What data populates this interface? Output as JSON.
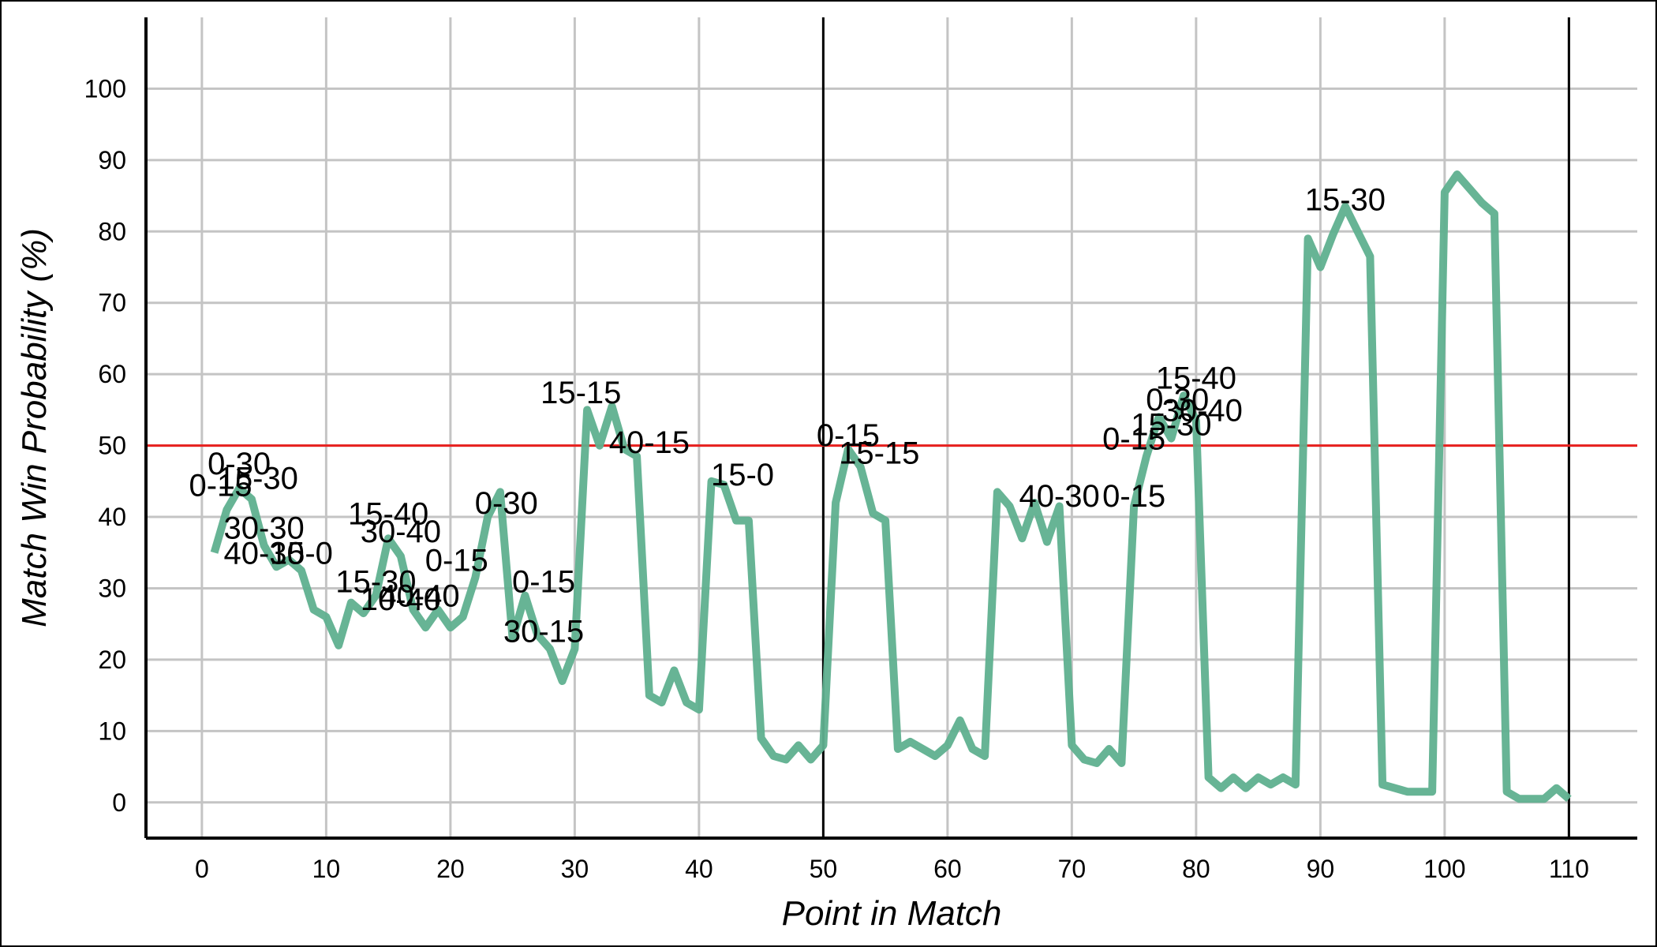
{
  "chart_data": {
    "type": "line",
    "title": "",
    "xlabel": "Point in Match",
    "ylabel": "Match Win Probability (%)",
    "xlim": [
      -4.5,
      115.5
    ],
    "ylim": [
      -5,
      110
    ],
    "xticks": [
      0,
      10,
      20,
      30,
      40,
      50,
      60,
      70,
      80,
      90,
      100,
      110
    ],
    "yticks": [
      0,
      10,
      20,
      30,
      40,
      50,
      60,
      70,
      80,
      90,
      100
    ],
    "grid": true,
    "reference_lines": {
      "horizontal": [
        {
          "y": 50,
          "color": "#e8201e"
        }
      ],
      "vertical": [
        {
          "x": 50,
          "color": "#000000"
        },
        {
          "x": 110,
          "color": "#000000"
        }
      ]
    },
    "series": [
      {
        "color": "#5fb08f",
        "x": [
          1,
          2,
          3,
          4,
          5,
          6,
          7,
          8,
          9,
          10,
          11,
          12,
          13,
          14,
          15,
          16,
          17,
          18,
          19,
          20,
          21,
          22,
          23,
          24,
          25,
          26,
          27,
          28,
          29,
          30,
          31,
          32,
          33,
          34,
          35,
          36,
          37,
          38,
          39,
          40,
          41,
          42,
          43,
          44,
          45,
          46,
          47,
          48,
          49,
          50,
          51,
          52,
          53,
          54,
          55,
          56,
          57,
          58,
          59,
          60,
          61,
          62,
          63,
          64,
          65,
          66,
          67,
          68,
          69,
          70,
          71,
          72,
          73,
          74,
          75,
          76,
          77,
          78,
          79,
          80,
          81,
          82,
          83,
          84,
          85,
          86,
          87,
          88,
          89,
          90,
          91,
          92,
          93,
          94,
          95,
          96,
          97,
          98,
          99,
          100,
          101,
          102,
          103,
          104,
          105,
          106,
          107,
          108,
          109,
          110
        ],
        "y": [
          35,
          41,
          44,
          42.5,
          36,
          33,
          34,
          32.5,
          27,
          26,
          22,
          28,
          26.5,
          29,
          37,
          34.5,
          27,
          24.5,
          27,
          24.5,
          26,
          31.5,
          40,
          43.5,
          23,
          29,
          23.5,
          21.5,
          17,
          21.5,
          55,
          50,
          55.5,
          49.5,
          48.5,
          15,
          14,
          18.5,
          14,
          13,
          45,
          44.5,
          39.5,
          39.5,
          9,
          6.5,
          6,
          8,
          6,
          8,
          42,
          49.5,
          47,
          40.5,
          39.5,
          7.5,
          8.5,
          7.5,
          6.5,
          8,
          11.5,
          7.5,
          6.5,
          43.5,
          41.5,
          37,
          42,
          36.5,
          41.5,
          8,
          6,
          5.5,
          7.5,
          5.5,
          41.5,
          48.5,
          54,
          51,
          57,
          53.5,
          3.5,
          2,
          3.5,
          2,
          3.5,
          2.5,
          3.5,
          2.5,
          79,
          75,
          79.5,
          83.5,
          80,
          76.5,
          2.5,
          2,
          1.5,
          1.5,
          1.5,
          85.5,
          88,
          86,
          84,
          82.5,
          1.5,
          0.5,
          0.5,
          0.5,
          2,
          0.5
        ]
      }
    ],
    "annotations": [
      {
        "text": "0-15",
        "x": 1.5,
        "y": 44.5
      },
      {
        "text": "0-30",
        "x": 3,
        "y": 47.5
      },
      {
        "text": "15-30",
        "x": 4.5,
        "y": 45.5
      },
      {
        "text": "30-30",
        "x": 5,
        "y": 38.5
      },
      {
        "text": "40-30",
        "x": 5,
        "y": 35
      },
      {
        "text": "15-0",
        "x": 8,
        "y": 35
      },
      {
        "text": "15-30",
        "x": 14,
        "y": 31
      },
      {
        "text": "40-40",
        "x": 17.5,
        "y": 29
      },
      {
        "text": "10-40",
        "x": 16,
        "y": 28.5
      },
      {
        "text": "15-40",
        "x": 15,
        "y": 40.5
      },
      {
        "text": "30-40",
        "x": 16,
        "y": 38
      },
      {
        "text": "0-15",
        "x": 20.5,
        "y": 34
      },
      {
        "text": "0-30",
        "x": 24.5,
        "y": 42
      },
      {
        "text": "0-15",
        "x": 27.5,
        "y": 31
      },
      {
        "text": "30-15",
        "x": 27.5,
        "y": 24
      },
      {
        "text": "15-15",
        "x": 30.5,
        "y": 57.5
      },
      {
        "text": "40-15",
        "x": 36,
        "y": 50.5
      },
      {
        "text": "15-0",
        "x": 43.5,
        "y": 46
      },
      {
        "text": "0-15",
        "x": 52,
        "y": 51.5
      },
      {
        "text": "15-15",
        "x": 54.5,
        "y": 49
      },
      {
        "text": "40-30",
        "x": 69,
        "y": 43
      },
      {
        "text": "0-15",
        "x": 75,
        "y": 43
      },
      {
        "text": "0-15",
        "x": 75,
        "y": 51
      },
      {
        "text": "15-30",
        "x": 78,
        "y": 53
      },
      {
        "text": "0-30",
        "x": 78.5,
        "y": 56.5
      },
      {
        "text": "30-40",
        "x": 80.5,
        "y": 55
      },
      {
        "text": "15-40",
        "x": 80,
        "y": 59.5
      },
      {
        "text": "15-30",
        "x": 92,
        "y": 84.5
      }
    ]
  }
}
